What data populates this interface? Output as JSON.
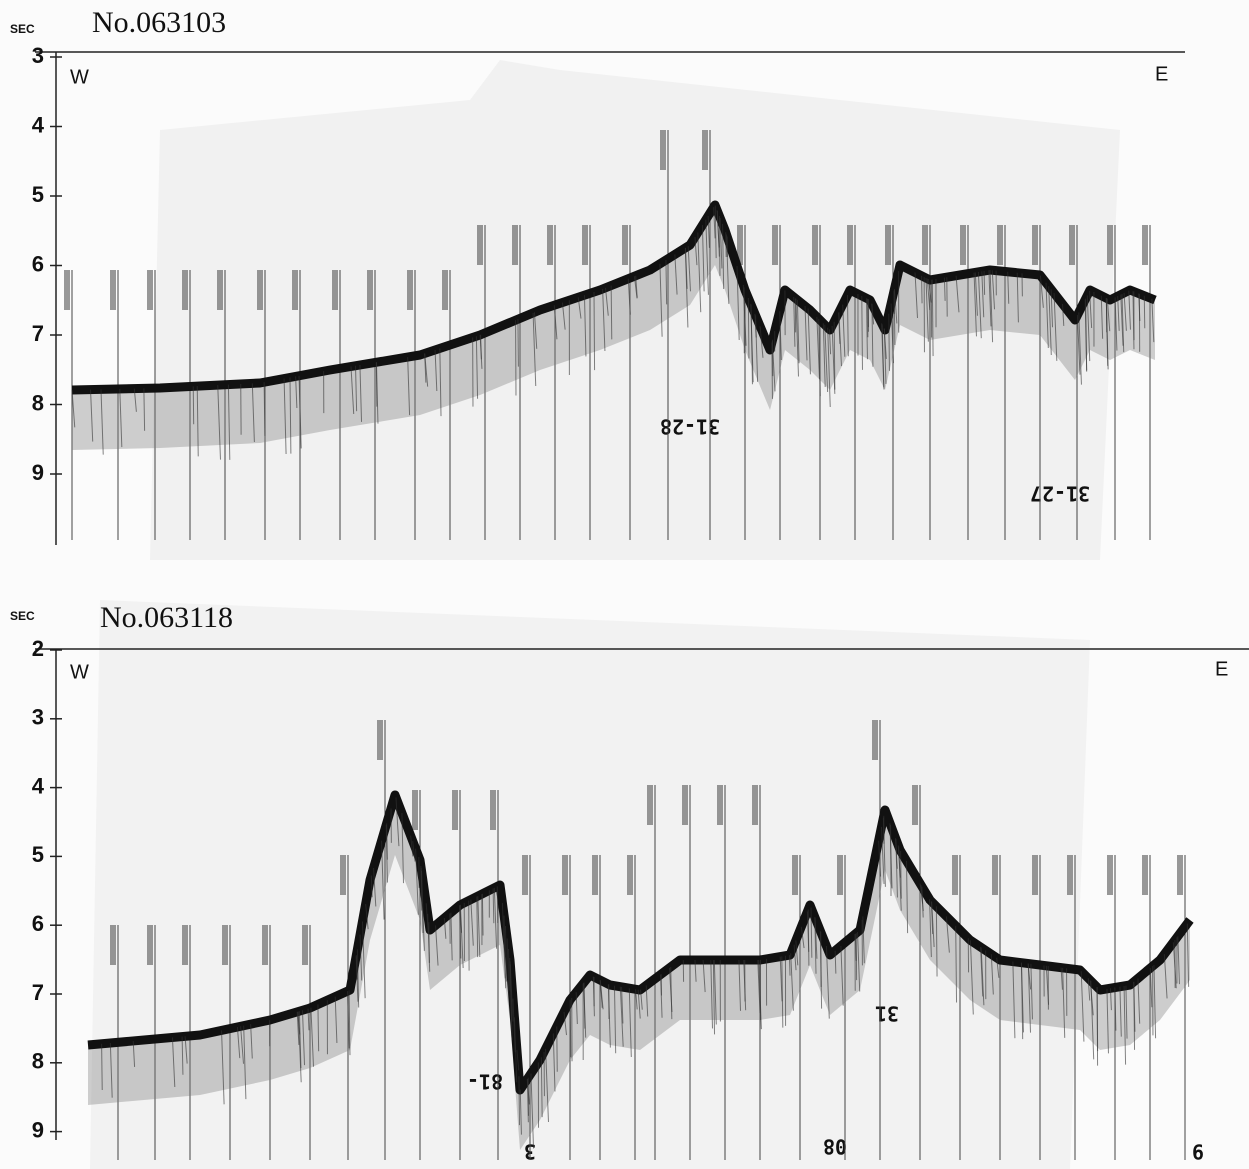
{
  "panels": [
    {
      "unit": "SEC",
      "title": "No.063103",
      "ticks": [
        3,
        4,
        5,
        6,
        7,
        8,
        9
      ],
      "west": "W",
      "east": "E",
      "annotations": [
        "31-28",
        "31-27"
      ]
    },
    {
      "unit": "SEC",
      "title": "No.063118",
      "ticks": [
        2,
        3,
        4,
        5,
        6,
        7,
        8,
        9
      ],
      "west": "W",
      "east": "E",
      "annotations": [
        "31",
        "81-",
        "3",
        "08",
        "9"
      ]
    }
  ]
}
